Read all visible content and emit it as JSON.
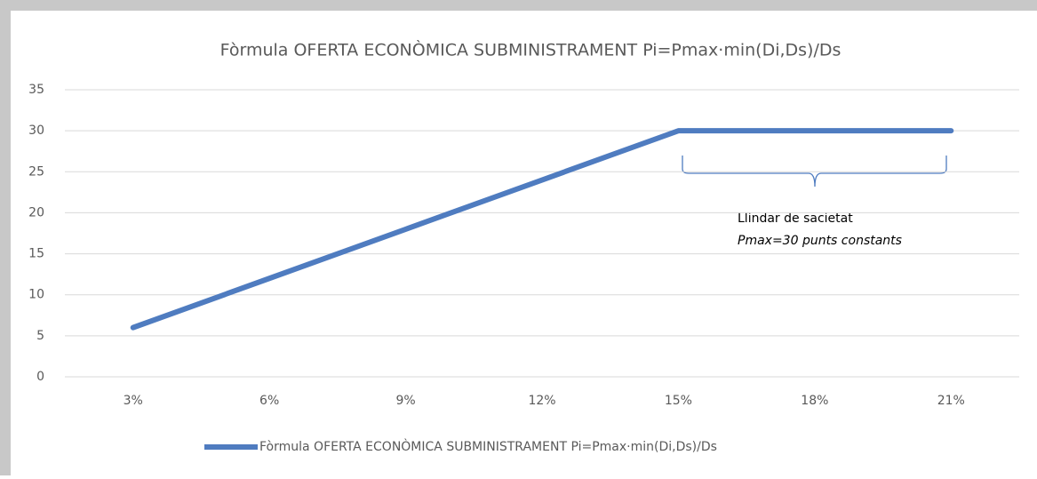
{
  "chart_data": {
    "type": "line",
    "title": "Fòrmula OFERTA ECONÒMICA SUBMINISTRAMENT Pi=Pmax·min(Di,Ds)/Ds",
    "categories": [
      "3%",
      "6%",
      "9%",
      "12%",
      "15%",
      "18%",
      "21%"
    ],
    "series": [
      {
        "name": "Fòrmula OFERTA ECONÒMICA SUBMINISTRAMENT Pi=Pmax·min(Di,Ds)/Ds",
        "color": "#4f7cc0",
        "values": [
          6,
          12,
          18,
          24,
          30,
          30,
          30
        ]
      }
    ],
    "ylim": [
      0,
      35
    ],
    "yticks": [
      0,
      5,
      10,
      15,
      20,
      25,
      30,
      35
    ],
    "grid": true,
    "legend": "bottom",
    "annotations": [
      "Llindar de sacietat",
      "Pmax=30 punts constants"
    ]
  }
}
